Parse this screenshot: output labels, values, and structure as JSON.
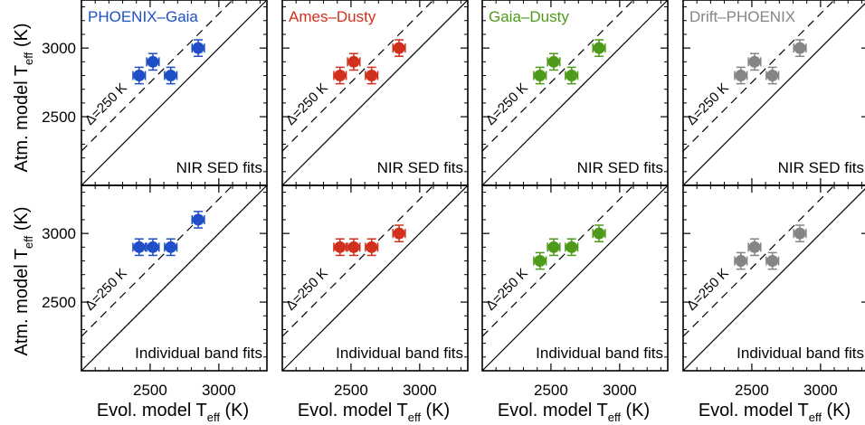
{
  "axes": {
    "xlabel_main": "Evol. model T",
    "xlabel_sub": "eff",
    "xlabel_unit": " (K)",
    "ylabel_main": "Atm. model T",
    "ylabel_sub": "eff",
    "ylabel_unit": " (K)",
    "xlim": [
      2000,
      3350
    ],
    "ylim": [
      2000,
      3350
    ],
    "xticks": [
      2500,
      3000
    ],
    "yticks": [
      2500,
      3000
    ],
    "offset_label": "Δ=250 K",
    "offset_value": 250
  },
  "row_labels": [
    "NIR SED fits",
    "Individual band fits"
  ],
  "chart_data": [
    {
      "type": "scatter",
      "model": "PHOENIX–Gaia",
      "color": "#1f4fc6",
      "row": "NIR SED fits",
      "x": [
        2420,
        2520,
        2650,
        2850
      ],
      "y": [
        2800,
        2900,
        2800,
        3000
      ]
    },
    {
      "type": "scatter",
      "model": "Ames–Dusty",
      "color": "#d1301c",
      "row": "NIR SED fits",
      "x": [
        2420,
        2520,
        2650,
        2850
      ],
      "y": [
        2800,
        2900,
        2800,
        3000
      ]
    },
    {
      "type": "scatter",
      "model": "Gaia–Dusty",
      "color": "#4e9a1a",
      "row": "NIR SED fits",
      "x": [
        2420,
        2520,
        2650,
        2850
      ],
      "y": [
        2800,
        2900,
        2800,
        3000
      ]
    },
    {
      "type": "scatter",
      "model": "Drift–PHOENIX",
      "color": "#858585",
      "row": "NIR SED fits",
      "x": [
        2420,
        2520,
        2650,
        2850
      ],
      "y": [
        2800,
        2900,
        2800,
        3000
      ]
    },
    {
      "type": "scatter",
      "model": "PHOENIX–Gaia",
      "color": "#1f4fc6",
      "row": "Individual band fits",
      "x": [
        2420,
        2520,
        2650,
        2850
      ],
      "y": [
        2900,
        2900,
        2900,
        3100
      ]
    },
    {
      "type": "scatter",
      "model": "Ames–Dusty",
      "color": "#d1301c",
      "row": "Individual band fits",
      "x": [
        2420,
        2520,
        2650,
        2850
      ],
      "y": [
        2900,
        2900,
        2900,
        3000
      ]
    },
    {
      "type": "scatter",
      "model": "Gaia–Dusty",
      "color": "#4e9a1a",
      "row": "Individual band fits",
      "x": [
        2420,
        2520,
        2650,
        2850
      ],
      "y": [
        2800,
        2900,
        2900,
        3000
      ]
    },
    {
      "type": "scatter",
      "model": "Drift–PHOENIX",
      "color": "#858585",
      "row": "Individual band fits",
      "x": [
        2420,
        2520,
        2650,
        2850
      ],
      "y": [
        2800,
        2900,
        2800,
        3000
      ]
    }
  ]
}
